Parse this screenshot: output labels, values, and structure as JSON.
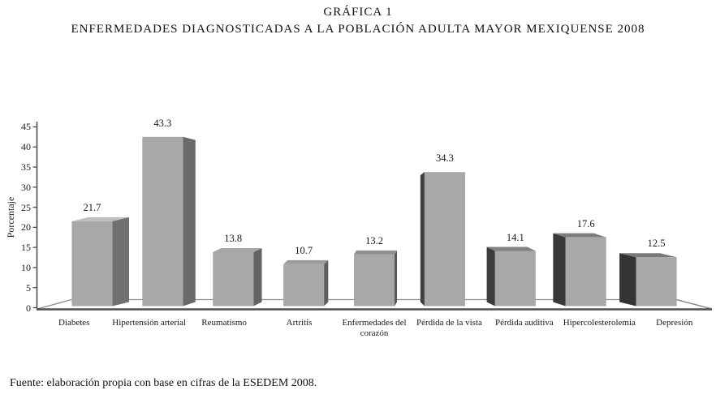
{
  "chart_data": {
    "type": "bar",
    "style": "3d-column-grayscale",
    "title": "GRÁFICA 1",
    "subtitle": "ENFERMEDADES DIAGNOSTICADAS A LA POBLACIÓN ADULTA MAYOR MEXIQUENSE 2008",
    "categories": [
      "Diabetes",
      "Hipertensión arterial",
      "Reumatismo",
      "Artritis",
      "Enfermedades del corazón",
      "Pérdida de la vista",
      "Pérdida auditiva",
      "Hipercolesterolemia",
      "Depresión"
    ],
    "values": [
      21.7,
      43.3,
      13.8,
      10.7,
      13.2,
      34.3,
      14.1,
      17.6,
      12.5
    ],
    "xlabel": "",
    "ylabel": "Porcentaje",
    "ylim": [
      0,
      45
    ],
    "yticks": [
      0,
      5,
      10,
      15,
      20,
      25,
      30,
      35,
      40,
      45
    ],
    "grid": false,
    "legend": false,
    "data_labels": true
  },
  "source": {
    "text": "Fuente: elaboración propia con base en cifras de la ESEDEM 2008."
  },
  "colors": {
    "bar_front": "#a8a8a8",
    "bar_side_dark": "#383838",
    "bar_side_medium": "#6e6e6e",
    "axis_line": "#4f4f4f",
    "floor_line": "#8c8c8c",
    "text": "#1a1a1a"
  }
}
